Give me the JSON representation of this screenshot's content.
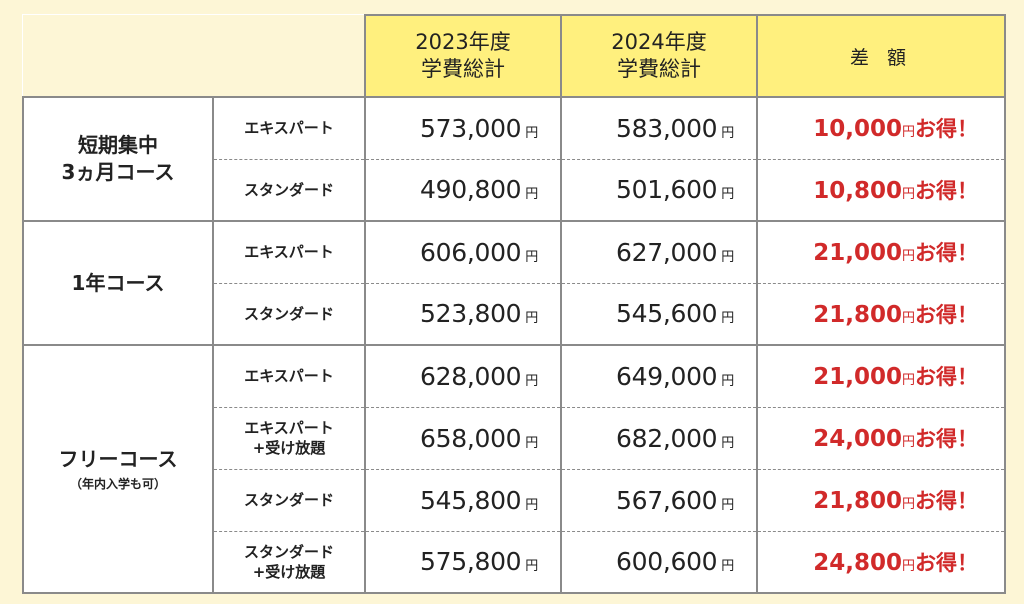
{
  "headers": {
    "year2023": [
      "2023年度",
      "学費総計"
    ],
    "year2024": [
      "2024年度",
      "学費総計"
    ],
    "difference": "差 額"
  },
  "currency": "円",
  "bonus_suffix": "お得！",
  "colors": {
    "header_bg": "#fff07e",
    "page_bg": "#fdf6d6",
    "diff_text": "#d12a2a",
    "border": "#8a8a8a"
  },
  "courses": [
    {
      "name": [
        "短期集中",
        "3ヵ月コース"
      ],
      "sub": "",
      "rows": [
        {
          "plan": [
            "エキスパート"
          ],
          "price2023": "573,000",
          "price2024": "583,000",
          "diff": "10,000"
        },
        {
          "plan": [
            "スタンダード"
          ],
          "price2023": "490,800",
          "price2024": "501,600",
          "diff": "10,800"
        }
      ]
    },
    {
      "name": [
        "1年コース"
      ],
      "sub": "",
      "rows": [
        {
          "plan": [
            "エキスパート"
          ],
          "price2023": "606,000",
          "price2024": "627,000",
          "diff": "21,000"
        },
        {
          "plan": [
            "スタンダード"
          ],
          "price2023": "523,800",
          "price2024": "545,600",
          "diff": "21,800"
        }
      ]
    },
    {
      "name": [
        "フリーコース"
      ],
      "sub": "（年内入学も可）",
      "rows": [
        {
          "plan": [
            "エキスパート"
          ],
          "price2023": "628,000",
          "price2024": "649,000",
          "diff": "21,000"
        },
        {
          "plan": [
            "エキスパート",
            "+受け放題"
          ],
          "price2023": "658,000",
          "price2024": "682,000",
          "diff": "24,000"
        },
        {
          "plan": [
            "スタンダード"
          ],
          "price2023": "545,800",
          "price2024": "567,600",
          "diff": "21,800"
        },
        {
          "plan": [
            "スタンダード",
            "+受け放題"
          ],
          "price2023": "575,800",
          "price2024": "600,600",
          "diff": "24,800"
        }
      ]
    }
  ]
}
